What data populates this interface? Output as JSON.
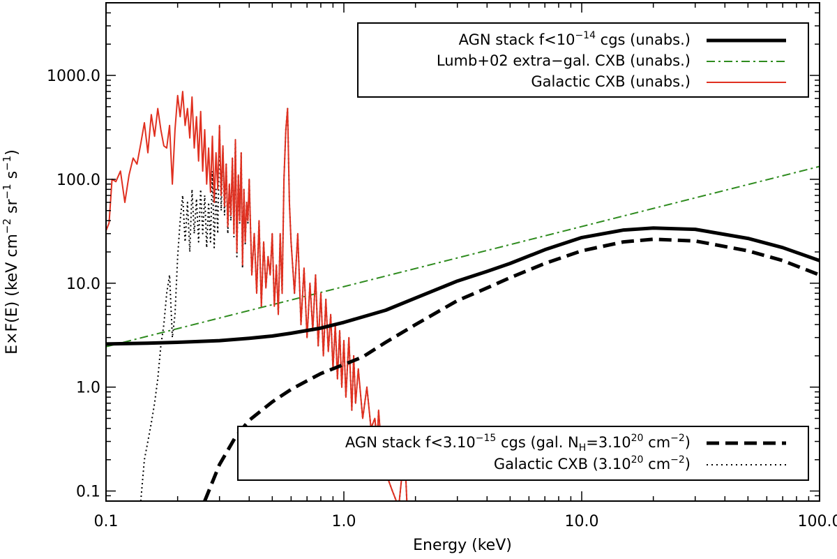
{
  "chart_data": {
    "type": "line",
    "title": "",
    "xlabel": "Energy (keV)",
    "ylabel": {
      "main": "E×F(E)",
      "units_prefix": "(keV cm",
      "exp1": "−2",
      "mid": " sr",
      "exp2": "−1",
      "mid2": " s",
      "exp3": "−1",
      "suffix": ")"
    },
    "x_scale": "log",
    "y_scale": "log",
    "xlim": [
      0.1,
      100.0
    ],
    "ylim": [
      0.08,
      5000
    ],
    "x_ticks": [
      0.1,
      1.0,
      10.0,
      100.0
    ],
    "x_tick_labels": [
      "0.1",
      "1.0",
      "10.0",
      "100.0"
    ],
    "y_ticks": [
      0.1,
      1.0,
      10.0,
      100.0,
      1000.0
    ],
    "y_tick_labels": [
      "0.1",
      "1.0",
      "10.0",
      "100.0",
      "1000.0"
    ],
    "legend_top": {
      "placement": "top-right",
      "entries": [
        {
          "pre": "AGN stack f<10",
          "sup": "−14",
          "post": " cgs (unabs.)",
          "series": "agn_unabs"
        },
        {
          "pre": "Lumb+02 extra−gal. CXB (unabs.)",
          "sup": "",
          "post": "",
          "series": "lumb"
        },
        {
          "pre": "Galactic CXB (unabs.)",
          "sup": "",
          "post": "",
          "series": "gal_unabs"
        }
      ]
    },
    "legend_bottom": {
      "placement": "bottom-right",
      "entries": [
        {
          "pre": "AGN stack f<3.10",
          "sup": "−15",
          "post": " cgs (gal. N",
          "sub": "H",
          "post2": "=3.10",
          "sup2": "20",
          "post3": " cm",
          "sup3": "−2",
          "post4": ")",
          "series": "agn_abs"
        },
        {
          "pre": "Galactic CXB (3.10",
          "sup": "20",
          "post": " cm",
          "sup2": "−2",
          "post2": ")",
          "series": "gal_abs"
        }
      ]
    },
    "series": [
      {
        "id": "agn_unabs",
        "name": "AGN stack f<10^-14 cgs (unabs.)",
        "color": "#000000",
        "style": "solid-thick",
        "x": [
          0.1,
          0.15,
          0.2,
          0.3,
          0.4,
          0.5,
          0.6,
          0.8,
          1.0,
          1.5,
          2.0,
          3.0,
          4.0,
          5.0,
          7.0,
          10.0,
          15.0,
          20.0,
          30.0,
          50.0,
          70.0,
          100.0
        ],
        "y": [
          2.6,
          2.65,
          2.7,
          2.8,
          2.95,
          3.1,
          3.3,
          3.7,
          4.2,
          5.5,
          7.2,
          10.5,
          13.0,
          15.5,
          21.0,
          27.5,
          32.5,
          34.0,
          33.0,
          27.0,
          22.0,
          16.5
        ]
      },
      {
        "id": "lumb",
        "name": "Lumb+02 extra-gal. CXB (unabs.)",
        "color": "#2e8b1e",
        "style": "dashdot",
        "x": [
          0.1,
          100.0
        ],
        "y": [
          2.45,
          133.0
        ]
      },
      {
        "id": "agn_abs",
        "name": "AGN stack f<3.10^-15 cgs (gal. NH=3.10^20 cm^-2)",
        "color": "#000000",
        "style": "dashed-thick",
        "x": [
          0.26,
          0.3,
          0.35,
          0.4,
          0.5,
          0.6,
          0.7,
          0.8,
          1.0,
          1.2,
          1.5,
          2.0,
          3.0,
          4.0,
          5.0,
          7.0,
          10.0,
          15.0,
          20.0,
          30.0,
          50.0,
          70.0,
          100.0
        ],
        "y": [
          0.08,
          0.18,
          0.33,
          0.48,
          0.72,
          0.95,
          1.15,
          1.35,
          1.65,
          1.95,
          2.7,
          4.0,
          6.8,
          9.0,
          11.3,
          15.5,
          20.5,
          25.0,
          26.5,
          25.5,
          20.5,
          16.5,
          12.0
        ]
      },
      {
        "id": "gal_unabs",
        "name": "Galactic CXB (unabs.)",
        "color": "#e03020",
        "style": "solid",
        "x": [
          0.1,
          0.103,
          0.106,
          0.11,
          0.115,
          0.12,
          0.125,
          0.13,
          0.135,
          0.14,
          0.145,
          0.15,
          0.155,
          0.16,
          0.165,
          0.17,
          0.175,
          0.18,
          0.185,
          0.19,
          0.195,
          0.2,
          0.205,
          0.21,
          0.215,
          0.22,
          0.225,
          0.23,
          0.235,
          0.24,
          0.245,
          0.25,
          0.255,
          0.26,
          0.265,
          0.27,
          0.275,
          0.28,
          0.285,
          0.29,
          0.295,
          0.3,
          0.305,
          0.31,
          0.315,
          0.32,
          0.325,
          0.33,
          0.335,
          0.34,
          0.345,
          0.35,
          0.355,
          0.36,
          0.365,
          0.37,
          0.375,
          0.38,
          0.385,
          0.39,
          0.395,
          0.4,
          0.41,
          0.42,
          0.43,
          0.44,
          0.45,
          0.46,
          0.47,
          0.48,
          0.49,
          0.5,
          0.51,
          0.52,
          0.53,
          0.54,
          0.55,
          0.56,
          0.57,
          0.58,
          0.59,
          0.6,
          0.62,
          0.64,
          0.66,
          0.68,
          0.7,
          0.72,
          0.74,
          0.76,
          0.78,
          0.8,
          0.82,
          0.84,
          0.86,
          0.88,
          0.9,
          0.92,
          0.94,
          0.96,
          0.98,
          1.0,
          1.02,
          1.05,
          1.08,
          1.1,
          1.12,
          1.15,
          1.2,
          1.25,
          1.3,
          1.35,
          1.38,
          1.4,
          1.45,
          1.5,
          1.6,
          1.7,
          1.8,
          1.85,
          1.9
        ],
        "y": [
          32,
          38,
          100,
          95,
          120,
          60,
          110,
          160,
          140,
          220,
          350,
          180,
          420,
          260,
          480,
          300,
          210,
          200,
          330,
          90,
          300,
          640,
          400,
          700,
          330,
          480,
          250,
          620,
          200,
          400,
          150,
          450,
          120,
          300,
          90,
          200,
          75,
          260,
          60,
          180,
          80,
          330,
          70,
          210,
          55,
          140,
          35,
          90,
          45,
          160,
          30,
          240,
          20,
          110,
          40,
          180,
          15,
          80,
          25,
          60,
          40,
          100,
          12,
          30,
          8,
          40,
          6,
          25,
          9,
          18,
          12,
          30,
          6,
          15,
          5,
          30,
          8,
          100,
          300,
          480,
          60,
          25,
          8,
          30,
          4,
          14,
          3,
          10,
          3.5,
          12,
          2.5,
          8,
          2,
          7,
          2.2,
          5,
          1.5,
          4,
          1.2,
          3.5,
          1.0,
          2.8,
          0.8,
          3.0,
          0.6,
          2.0,
          0.7,
          1.5,
          0.5,
          1.0,
          0.4,
          0.5,
          0.3,
          0.6,
          0.2,
          0.15,
          0.1,
          0.07,
          0.25,
          0.06,
          0.05
        ]
      },
      {
        "id": "gal_abs",
        "name": "Galactic CXB (3.10^20 cm^-2)",
        "color": "#000000",
        "style": "dotted",
        "x": [
          0.14,
          0.145,
          0.15,
          0.155,
          0.16,
          0.165,
          0.17,
          0.175,
          0.18,
          0.185,
          0.19,
          0.195,
          0.2,
          0.205,
          0.21,
          0.215,
          0.22,
          0.225,
          0.23,
          0.235,
          0.24,
          0.245,
          0.25,
          0.255,
          0.26,
          0.265,
          0.27,
          0.275,
          0.28,
          0.285,
          0.29,
          0.295,
          0.3,
          0.305,
          0.31,
          0.315,
          0.32,
          0.325,
          0.33,
          0.335,
          0.34,
          0.345,
          0.35,
          0.355,
          0.36,
          0.365,
          0.37,
          0.375,
          0.38,
          0.385,
          0.39,
          0.395,
          0.4,
          0.41,
          0.42,
          0.43,
          0.44,
          0.45,
          0.46,
          0.47,
          0.48,
          0.49,
          0.5,
          0.51,
          0.52,
          0.53,
          0.54,
          0.55,
          0.56,
          0.57,
          0.58,
          0.59,
          0.6,
          0.62,
          0.64,
          0.66,
          0.68,
          0.7,
          0.72,
          0.74,
          0.76,
          0.78,
          0.8,
          0.82,
          0.84,
          0.86,
          0.88,
          0.9,
          0.92,
          0.94,
          0.96,
          0.98,
          1.0,
          1.02,
          1.05,
          1.08,
          1.1,
          1.12,
          1.15,
          1.2,
          1.25,
          1.3,
          1.35,
          1.38,
          1.4,
          1.45,
          1.5,
          1.6,
          1.7,
          1.8,
          1.85,
          1.9
        ],
        "y": [
          0.08,
          0.2,
          0.3,
          0.45,
          0.7,
          1.2,
          2.5,
          4.0,
          8.0,
          12.0,
          3.0,
          5.0,
          18.0,
          40.0,
          70.0,
          25.0,
          60.0,
          20.0,
          80.0,
          30.0,
          65.0,
          25.0,
          80.0,
          30.0,
          70.0,
          22.0,
          60.0,
          25.0,
          120.0,
          22.0,
          80.0,
          30.0,
          330.0,
          50.0,
          200.0,
          45.0,
          140.0,
          30.0,
          90.0,
          40.0,
          160.0,
          28.0,
          240.0,
          18.0,
          110.0,
          38.0,
          180.0,
          14.0,
          80.0,
          24.0,
          60.0,
          38.0,
          100.0,
          12.0,
          30.0,
          8.0,
          40.0,
          6.0,
          25.0,
          9.0,
          18.0,
          12.0,
          30.0,
          6.0,
          15.0,
          5.0,
          30.0,
          8.0,
          100.0,
          300.0,
          480.0,
          60.0,
          25.0,
          8.0,
          30.0,
          4.0,
          14.0,
          3.0,
          10.0,
          3.5,
          12.0,
          2.5,
          8.0,
          2.0,
          7.0,
          2.2,
          5.0,
          1.5,
          4.0,
          1.2,
          3.5,
          1.0,
          2.8,
          0.8,
          3.0,
          0.6,
          2.0,
          0.7,
          1.5,
          0.5,
          1.0,
          0.4,
          0.5,
          0.3,
          0.6,
          0.2,
          0.15,
          0.1,
          0.07,
          0.25,
          0.06,
          0.05
        ]
      }
    ]
  }
}
